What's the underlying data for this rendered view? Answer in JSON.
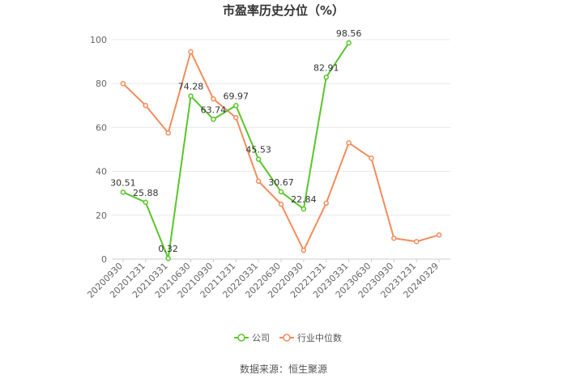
{
  "chart_data": {
    "type": "line",
    "title": "市盈率历史分位（%）",
    "categories": [
      "20200930",
      "20201231",
      "20210331",
      "20210630",
      "20210930",
      "20211231",
      "20220331",
      "20220630",
      "20220930",
      "20221231",
      "20230331",
      "20230630",
      "20230930",
      "20231231",
      "20240329"
    ],
    "ylim": [
      0,
      100
    ],
    "yticks": [
      0,
      20,
      40,
      60,
      80,
      100
    ],
    "grid": true,
    "legend_position": "bottom",
    "series": [
      {
        "name": "公司",
        "color": "#5bc42b",
        "labeled": true,
        "values": [
          30.51,
          25.88,
          0.32,
          74.28,
          63.74,
          69.97,
          45.53,
          30.67,
          22.84,
          82.91,
          98.56,
          null,
          null,
          null,
          null
        ]
      },
      {
        "name": "行业中位数",
        "color": "#f28c5c",
        "labeled": false,
        "values": [
          80,
          70,
          57.5,
          94.5,
          73,
          64.5,
          35.5,
          25,
          4,
          25.5,
          53,
          46,
          9.5,
          8,
          11
        ]
      }
    ]
  },
  "source_text": "数据来源：恒生聚源"
}
